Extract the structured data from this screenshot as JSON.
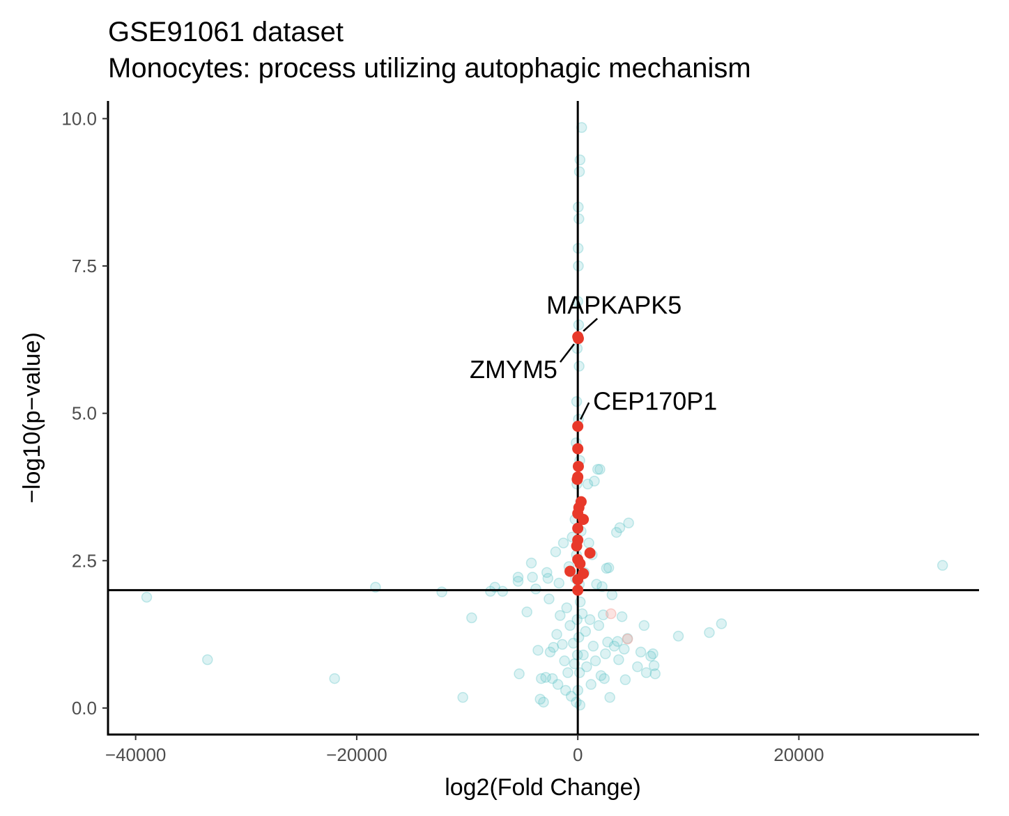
{
  "chart_data": {
    "type": "scatter",
    "title": "GSE91061 dataset",
    "subtitle": "Monocytes: process utilizing autophagic mechanism",
    "xlabel": "log2(Fold Change)",
    "ylabel": "−log10(p−value)",
    "xlim": [
      -42500,
      36300
    ],
    "ylim": [
      -0.45,
      10.3
    ],
    "x_ticks": [
      {
        "value": -40000,
        "label": "−40000"
      },
      {
        "value": -20000,
        "label": "−20000"
      },
      {
        "value": 0,
        "label": "0"
      },
      {
        "value": 20000,
        "label": "20000"
      }
    ],
    "y_ticks": [
      {
        "value": 0,
        "label": "0.0"
      },
      {
        "value": 2.5,
        "label": "2.5"
      },
      {
        "value": 5,
        "label": "5.0"
      },
      {
        "value": 7.5,
        "label": "7.5"
      },
      {
        "value": 10,
        "label": "10.0"
      }
    ],
    "reference_lines": {
      "vertical_x": 0,
      "horizontal_y": 2
    },
    "grid": false,
    "legend": "none",
    "colors": {
      "background": "#4ebdc2",
      "highlight": "#e8392a",
      "faded_highlight": "#f4a19a"
    },
    "series": [
      {
        "role": "background",
        "opacity": 0.2,
        "points": [
          [
            -39000,
            1.88
          ],
          [
            -33500,
            0.82
          ],
          [
            -22000,
            0.5
          ],
          [
            -18300,
            2.05
          ],
          [
            -12300,
            1.97
          ],
          [
            -10400,
            0.18
          ],
          [
            -9600,
            1.53
          ],
          [
            -7900,
            1.98
          ],
          [
            -7500,
            2.05
          ],
          [
            -6800,
            1.98
          ],
          [
            -5400,
            2.22
          ],
          [
            -5400,
            2.15
          ],
          [
            -5300,
            0.58
          ],
          [
            -4600,
            1.63
          ],
          [
            -4200,
            2.46
          ],
          [
            -4100,
            2.22
          ],
          [
            -3800,
            2.02
          ],
          [
            -3600,
            0.98
          ],
          [
            -3400,
            0.15
          ],
          [
            -3300,
            0.5
          ],
          [
            -3100,
            0.1
          ],
          [
            -2900,
            0.52
          ],
          [
            -2800,
            2.3
          ],
          [
            -2700,
            2.2
          ],
          [
            -2600,
            1.85
          ],
          [
            -2500,
            0.95
          ],
          [
            -2300,
            0.5
          ],
          [
            -2200,
            1.03
          ],
          [
            -2000,
            2.65
          ],
          [
            -1900,
            1.25
          ],
          [
            -1800,
            0.4
          ],
          [
            -1700,
            2.12
          ],
          [
            -1600,
            1.57
          ],
          [
            -1400,
            1.08
          ],
          [
            -1300,
            2.8
          ],
          [
            -1200,
            0.8
          ],
          [
            -1100,
            0.3
          ],
          [
            -1000,
            1.7
          ],
          [
            -900,
            0.6
          ],
          [
            -800,
            2.4
          ],
          [
            -700,
            1.4
          ],
          [
            -600,
            0.2
          ],
          [
            -500,
            2.9
          ],
          [
            -400,
            1.1
          ],
          [
            -300,
            0.75
          ],
          [
            -250,
            3.2
          ],
          [
            -200,
            2.2
          ],
          [
            -150,
            4.5
          ],
          [
            -100,
            5.2
          ],
          [
            -50,
            6.1
          ],
          [
            0,
            6.9
          ],
          [
            50,
            7.5
          ],
          [
            30,
            7.8
          ],
          [
            100,
            8.3
          ],
          [
            40,
            8.5
          ],
          [
            150,
            9.1
          ],
          [
            200,
            9.3
          ],
          [
            350,
            9.85
          ],
          [
            80,
            6.5
          ],
          [
            120,
            5.8
          ],
          [
            60,
            4.9
          ],
          [
            180,
            4.2
          ],
          [
            -80,
            3.8
          ],
          [
            250,
            3.5
          ],
          [
            300,
            3.0
          ],
          [
            -120,
            2.6
          ],
          [
            140,
            2.1
          ],
          [
            220,
            1.8
          ],
          [
            -60,
            1.5
          ],
          [
            90,
            1.2
          ],
          [
            -30,
            0.9
          ],
          [
            160,
            0.6
          ],
          [
            10,
            0.3
          ],
          [
            -140,
            0.1
          ],
          [
            200,
            0.05
          ],
          [
            400,
            1.6
          ],
          [
            500,
            0.9
          ],
          [
            600,
            2.3
          ],
          [
            700,
            1.3
          ],
          [
            800,
            0.7
          ],
          [
            900,
            3.8
          ],
          [
            1000,
            2.8
          ],
          [
            1100,
            1.5
          ],
          [
            1200,
            0.4
          ],
          [
            1300,
            2.6
          ],
          [
            1400,
            1.05
          ],
          [
            1500,
            3.85
          ],
          [
            1600,
            0.8
          ],
          [
            1700,
            2.1
          ],
          [
            1800,
            4.05
          ],
          [
            1900,
            1.4
          ],
          [
            2000,
            4.05
          ],
          [
            2100,
            0.55
          ],
          [
            2200,
            2.06
          ],
          [
            2300,
            1.58
          ],
          [
            2400,
            0.5
          ],
          [
            2500,
            0.92
          ],
          [
            2600,
            2.37
          ],
          [
            2700,
            1.12
          ],
          [
            2800,
            2.38
          ],
          [
            2900,
            0.18
          ],
          [
            3100,
            1.92
          ],
          [
            3300,
            1.05
          ],
          [
            3500,
            2.98
          ],
          [
            3700,
            0.82
          ],
          [
            3800,
            3.06
          ],
          [
            3600,
            1.13
          ],
          [
            4000,
            1.55
          ],
          [
            4200,
            1.0
          ],
          [
            4500,
            1.18
          ],
          [
            4600,
            3.14
          ],
          [
            4300,
            0.48
          ],
          [
            5400,
            0.7
          ],
          [
            5700,
            0.95
          ],
          [
            6000,
            1.4
          ],
          [
            6200,
            0.6
          ],
          [
            6600,
            0.88
          ],
          [
            6800,
            0.92
          ],
          [
            6900,
            0.72
          ],
          [
            7000,
            0.58
          ],
          [
            9100,
            1.22
          ],
          [
            11900,
            1.28
          ],
          [
            13000,
            1.43
          ],
          [
            33000,
            2.42
          ]
        ]
      },
      {
        "role": "highlight",
        "opacity": 1.0,
        "points": [
          [
            0,
            6.3
          ],
          [
            50,
            6.27
          ],
          [
            0,
            4.78
          ],
          [
            0,
            4.4
          ],
          [
            50,
            4.1
          ],
          [
            0,
            3.92
          ],
          [
            -50,
            3.88
          ],
          [
            300,
            3.5
          ],
          [
            100,
            3.4
          ],
          [
            0,
            3.3
          ],
          [
            500,
            3.2
          ],
          [
            0,
            3.05
          ],
          [
            0,
            2.85
          ],
          [
            -100,
            2.75
          ],
          [
            1100,
            2.63
          ],
          [
            0,
            2.52
          ],
          [
            200,
            2.45
          ],
          [
            -700,
            2.32
          ],
          [
            500,
            2.28
          ],
          [
            0,
            2.18
          ],
          [
            0,
            2.0
          ]
        ]
      },
      {
        "role": "faded_highlight",
        "opacity": 0.3,
        "points": [
          [
            3000,
            1.6
          ],
          [
            4500,
            1.17
          ]
        ]
      }
    ],
    "annotations": [
      {
        "text": "MAPKAPK5",
        "x": 0,
        "y": 6.3
      },
      {
        "text": "ZMYM5",
        "x": 50,
        "y": 6.27
      },
      {
        "text": "CEP170P1",
        "x": 0,
        "y": 4.78
      }
    ]
  }
}
